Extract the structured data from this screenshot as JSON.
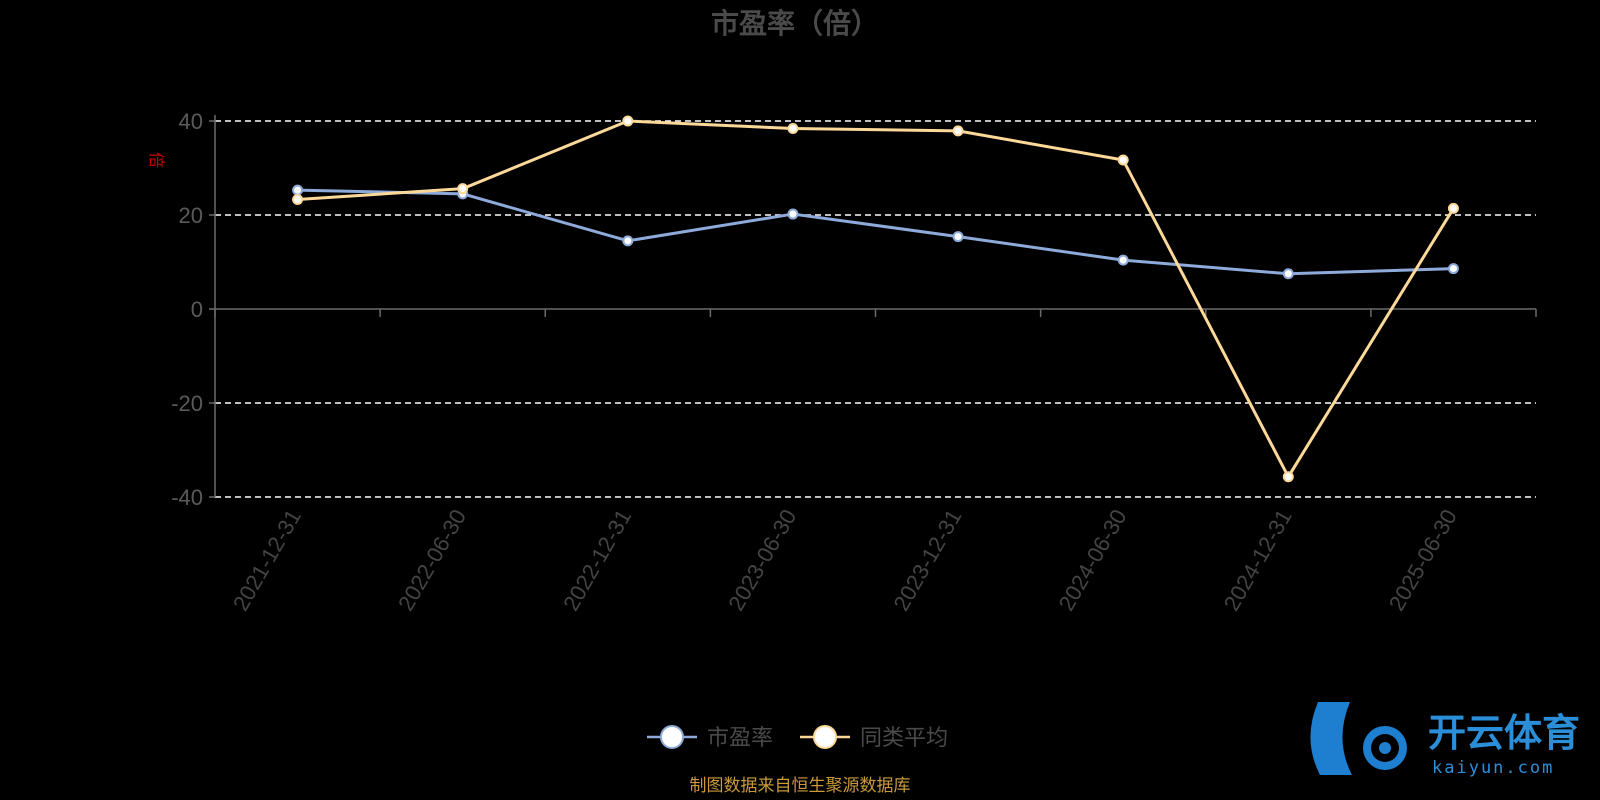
{
  "chart_data": {
    "type": "line",
    "title": "市盈率（倍）",
    "ylabel": "倍",
    "xlabel": "",
    "categories": [
      "2021-12-31",
      "2022-06-30",
      "2022-12-31",
      "2023-06-30",
      "2023-12-31",
      "2024-06-30",
      "2024-12-31",
      "2025-06-30"
    ],
    "series": [
      {
        "name": "市盈率",
        "color": "#8eaadb",
        "values": [
          25.3,
          24.5,
          14.5,
          20.2,
          15.4,
          10.4,
          7.5,
          8.6
        ]
      },
      {
        "name": "同类平均",
        "color": "#fdd999",
        "values": [
          23.3,
          25.6,
          40.0,
          38.4,
          37.9,
          31.7,
          -35.7,
          21.4
        ]
      }
    ],
    "ylim": [
      -40,
      40
    ],
    "yticks": [
      -40,
      -20,
      0,
      20,
      40
    ],
    "grid": true,
    "legend": "bottom-center"
  },
  "source_note": "制图数据来自恒生聚源数据库",
  "watermark": {
    "name": "开云体育",
    "domain": "kaiyun.com",
    "color": "#2a8fd8"
  }
}
